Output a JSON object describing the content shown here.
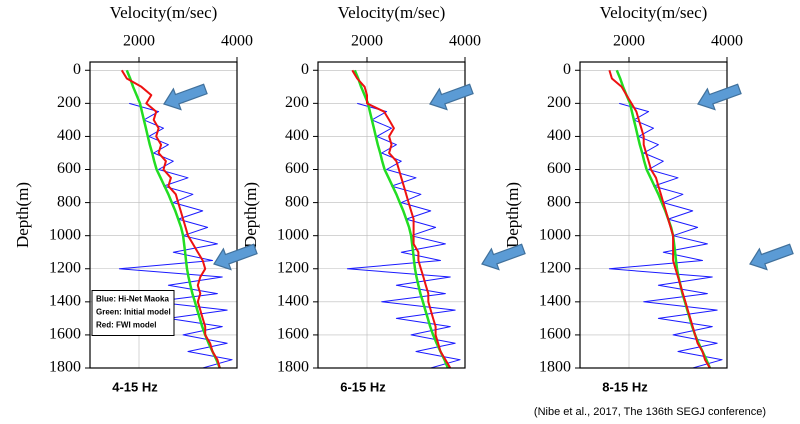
{
  "chart_data": [
    {
      "type": "line",
      "title": "Velocity(m/sec)",
      "ylabel": "Depth(m)",
      "annotation": "4-15 Hz",
      "y": [
        0,
        50,
        100,
        150,
        200,
        250,
        300,
        350,
        400,
        450,
        500,
        550,
        600,
        650,
        700,
        750,
        800,
        850,
        900,
        950,
        1000,
        1050,
        1100,
        1150,
        1200,
        1250,
        1300,
        1350,
        1400,
        1450,
        1500,
        1550,
        1600,
        1650,
        1700,
        1750,
        1800
      ],
      "xlim": [
        1000,
        4000
      ],
      "xticks": [
        2000,
        4000
      ],
      "ylim": [
        1800,
        -50
      ],
      "yticks": [
        0,
        200,
        400,
        600,
        800,
        1000,
        1200,
        1400,
        1600,
        1800
      ],
      "grid": true,
      "legend": "lower left",
      "series": [
        {
          "name": "Blue: Hi-Net Maoka",
          "color": "#1a1aff",
          "width": 1,
          "values": [
            null,
            null,
            null,
            null,
            1800,
            2400,
            2100,
            2500,
            2200,
            2600,
            2300,
            2700,
            2400,
            3000,
            2500,
            3100,
            2700,
            3300,
            2800,
            3400,
            2900,
            3600,
            2700,
            3500,
            1600,
            3700,
            2600,
            3600,
            2300,
            3800,
            2600,
            3700,
            2900,
            3800,
            3000,
            3900,
            3300
          ]
        },
        {
          "name": "Green: Initial model",
          "color": "#22dd22",
          "width": 2.5,
          "values": [
            1750,
            1820,
            1880,
            1950,
            2020,
            2060,
            2100,
            2140,
            2180,
            2220,
            2270,
            2310,
            2360,
            2440,
            2520,
            2600,
            2670,
            2740,
            2800,
            2860,
            2900,
            2920,
            2940,
            2960,
            2980,
            3010,
            3050,
            3090,
            3140,
            3190,
            3240,
            3290,
            3350,
            3420,
            3500,
            3580,
            3650
          ]
        },
        {
          "name": "Red: FWI model",
          "color": "#ee1111",
          "width": 2,
          "values": [
            1650,
            1750,
            2050,
            2250,
            2150,
            2350,
            2300,
            2400,
            2350,
            2450,
            2400,
            2550,
            2500,
            2650,
            2600,
            2750,
            2800,
            2850,
            2900,
            2950,
            3000,
            3100,
            3200,
            3300,
            3350,
            3250,
            3200,
            3250,
            3200,
            3250,
            3300,
            3350,
            3350,
            3450,
            3500,
            3600,
            3650
          ]
        }
      ]
    },
    {
      "type": "line",
      "title": "Velocity(m/sec)",
      "ylabel": "Depth(m)",
      "annotation": "6-15 Hz",
      "y": [
        0,
        50,
        100,
        150,
        200,
        250,
        300,
        350,
        400,
        450,
        500,
        550,
        600,
        650,
        700,
        750,
        800,
        850,
        900,
        950,
        1000,
        1050,
        1100,
        1150,
        1200,
        1250,
        1300,
        1350,
        1400,
        1450,
        1500,
        1550,
        1600,
        1650,
        1700,
        1750,
        1800
      ],
      "xlim": [
        1000,
        4000
      ],
      "xticks": [
        2000,
        4000
      ],
      "ylim": [
        1800,
        -50
      ],
      "yticks": [
        0,
        200,
        400,
        600,
        800,
        1000,
        1200,
        1400,
        1600,
        1800
      ],
      "grid": true,
      "series": [
        {
          "color": "#1a1aff",
          "width": 1,
          "values": [
            null,
            null,
            null,
            null,
            1800,
            2400,
            2100,
            2500,
            2200,
            2600,
            2300,
            2700,
            2400,
            3000,
            2500,
            3100,
            2700,
            3300,
            2800,
            3400,
            2900,
            3600,
            2700,
            3500,
            1600,
            3700,
            2600,
            3600,
            2300,
            3800,
            2600,
            3700,
            2900,
            3800,
            3000,
            3900,
            3300
          ]
        },
        {
          "color": "#22dd22",
          "width": 2.5,
          "values": [
            1750,
            1820,
            1880,
            1950,
            2020,
            2060,
            2100,
            2140,
            2180,
            2220,
            2270,
            2310,
            2360,
            2440,
            2520,
            2600,
            2670,
            2740,
            2800,
            2860,
            2900,
            2920,
            2940,
            2960,
            2980,
            3010,
            3050,
            3090,
            3140,
            3190,
            3240,
            3290,
            3350,
            3420,
            3500,
            3580,
            3650
          ]
        },
        {
          "color": "#ee1111",
          "width": 2,
          "values": [
            1700,
            1800,
            1950,
            2000,
            2000,
            2350,
            2450,
            2550,
            2450,
            2500,
            2450,
            2600,
            2650,
            2700,
            2750,
            2800,
            2850,
            2900,
            2950,
            2950,
            2950,
            2950,
            3050,
            3050,
            3100,
            3150,
            3200,
            3250,
            3250,
            3300,
            3350,
            3400,
            3400,
            3450,
            3500,
            3600,
            3700
          ]
        }
      ]
    },
    {
      "type": "line",
      "title": "Velocity(m/sec)",
      "ylabel": "Depth(m)",
      "annotation": "8-15 Hz",
      "y": [
        0,
        50,
        100,
        150,
        200,
        250,
        300,
        350,
        400,
        450,
        500,
        550,
        600,
        650,
        700,
        750,
        800,
        850,
        900,
        950,
        1000,
        1050,
        1100,
        1150,
        1200,
        1250,
        1300,
        1350,
        1400,
        1450,
        1500,
        1550,
        1600,
        1650,
        1700,
        1750,
        1800
      ],
      "xlim": [
        1000,
        4000
      ],
      "xticks": [
        2000,
        4000
      ],
      "ylim": [
        1800,
        -50
      ],
      "yticks": [
        0,
        200,
        400,
        600,
        800,
        1000,
        1200,
        1400,
        1600,
        1800
      ],
      "grid": true,
      "series": [
        {
          "color": "#1a1aff",
          "width": 1,
          "values": [
            null,
            null,
            null,
            null,
            1800,
            2400,
            2100,
            2500,
            2200,
            2600,
            2300,
            2700,
            2400,
            3000,
            2500,
            3100,
            2700,
            3300,
            2800,
            3400,
            2900,
            3600,
            2700,
            3500,
            1600,
            3700,
            2600,
            3600,
            2300,
            3800,
            2600,
            3700,
            2900,
            3800,
            3000,
            3900,
            3300
          ]
        },
        {
          "color": "#22dd22",
          "width": 2.5,
          "values": [
            1750,
            1820,
            1880,
            1950,
            2020,
            2060,
            2100,
            2140,
            2180,
            2220,
            2270,
            2310,
            2360,
            2440,
            2520,
            2600,
            2670,
            2740,
            2800,
            2860,
            2900,
            2920,
            2940,
            2960,
            2980,
            3010,
            3050,
            3090,
            3140,
            3190,
            3240,
            3290,
            3350,
            3420,
            3500,
            3580,
            3650
          ]
        },
        {
          "color": "#ee1111",
          "width": 2,
          "values": [
            1600,
            1650,
            1850,
            1950,
            2050,
            2150,
            2200,
            2250,
            2300,
            2300,
            2350,
            2400,
            2450,
            2550,
            2600,
            2650,
            2700,
            2750,
            2800,
            2850,
            2900,
            2900,
            2900,
            2900,
            2950,
            3000,
            3050,
            3100,
            3150,
            3200,
            3250,
            3300,
            3350,
            3400,
            3500,
            3550,
            3650
          ]
        }
      ]
    }
  ],
  "citation": "(Nibe et al., 2017, The 136th SEGJ conference)"
}
